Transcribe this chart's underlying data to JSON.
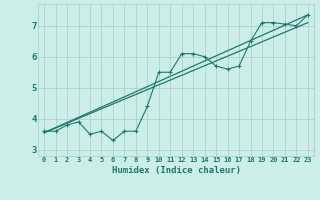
{
  "xlabel": "Humidex (Indice chaleur)",
  "background_color": "#cceee8",
  "line_color": "#1a7a6e",
  "grid_color": "#a8ccc8",
  "x_data": [
    0,
    1,
    2,
    3,
    4,
    5,
    6,
    7,
    8,
    9,
    10,
    11,
    12,
    13,
    14,
    15,
    16,
    17,
    18,
    19,
    20,
    21,
    22,
    23
  ],
  "y_main": [
    3.6,
    3.6,
    3.8,
    3.9,
    3.5,
    3.6,
    3.3,
    3.6,
    3.6,
    4.4,
    5.5,
    5.5,
    6.1,
    6.1,
    6.0,
    5.7,
    5.6,
    5.7,
    6.5,
    7.1,
    7.1,
    7.05,
    7.0,
    7.35
  ],
  "y_trend1_start": 3.55,
  "y_trend1_end": 7.35,
  "y_trend2_start": 3.55,
  "y_trend2_end": 7.1,
  "ylim": [
    2.8,
    7.7
  ],
  "xlim": [
    -0.5,
    23.5
  ],
  "yticks": [
    3,
    4,
    5,
    6,
    7
  ],
  "xticks": [
    0,
    1,
    2,
    3,
    4,
    5,
    6,
    7,
    8,
    9,
    10,
    11,
    12,
    13,
    14,
    15,
    16,
    17,
    18,
    19,
    20,
    21,
    22,
    23
  ]
}
